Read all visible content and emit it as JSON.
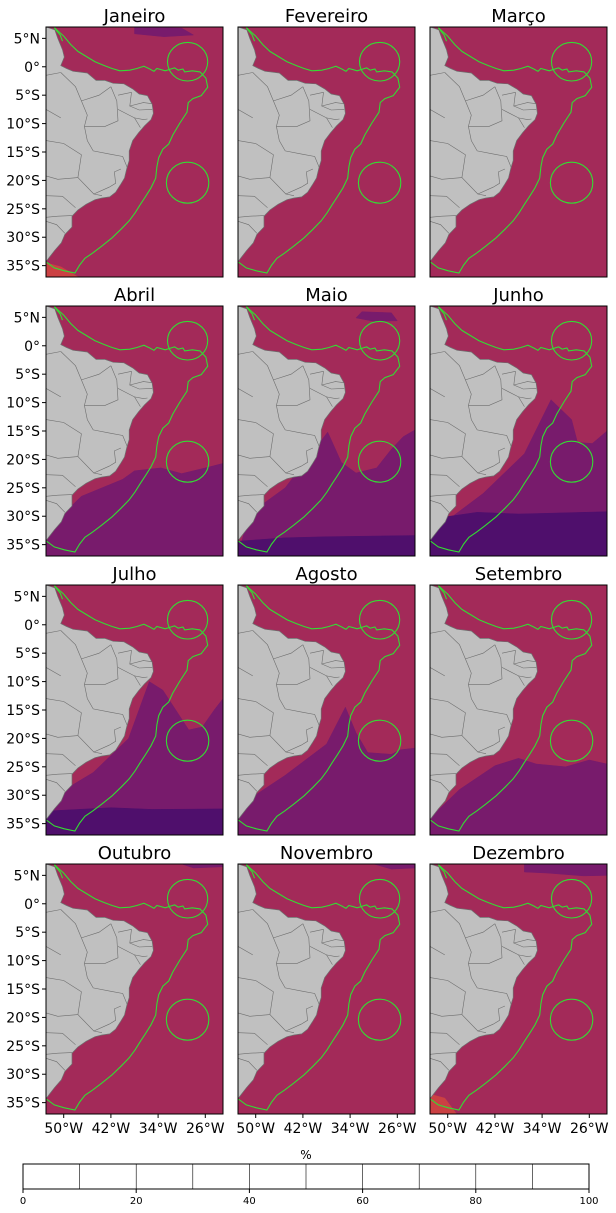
{
  "figure": {
    "units_label": "%"
  },
  "chart_data": {
    "type": "heatmap",
    "panels": [
      {
        "title": "Janeiro"
      },
      {
        "title": "Fevereiro"
      },
      {
        "title": "Março"
      },
      {
        "title": "Abril"
      },
      {
        "title": "Maio"
      },
      {
        "title": "Junho"
      },
      {
        "title": "Julho"
      },
      {
        "title": "Agosto"
      },
      {
        "title": "Setembro"
      },
      {
        "title": "Outubro"
      },
      {
        "title": "Novembro"
      },
      {
        "title": "Dezembro"
      }
    ],
    "lat_ticks": [
      "5°N",
      "0°",
      "5°S",
      "10°S",
      "15°S",
      "20°S",
      "25°S",
      "30°S",
      "35°S"
    ],
    "lat_values": [
      5,
      0,
      -5,
      -10,
      -15,
      -20,
      -25,
      -30,
      -35
    ],
    "lon_ticks": [
      "50°W",
      "42°W",
      "34°W",
      "26°W"
    ],
    "lon_values": [
      -50,
      -42,
      -34,
      -26
    ],
    "xlim": [
      -53,
      -23
    ],
    "ylim": [
      -37,
      7
    ],
    "colorbar": {
      "label": "%",
      "ticks": [
        "0",
        "20",
        "40",
        "60",
        "80",
        "100"
      ],
      "range": [
        0,
        100
      ],
      "bins": [
        {
          "from": 0,
          "to": 10,
          "color": "#060419"
        },
        {
          "from": 10,
          "to": 20,
          "color": "#260c50"
        },
        {
          "from": 20,
          "to": 30,
          "color": "#4f0f6c"
        },
        {
          "from": 30,
          "to": 40,
          "color": "#781b6c"
        },
        {
          "from": 40,
          "to": 50,
          "color": "#a32a59"
        },
        {
          "from": 50,
          "to": 60,
          "color": "#cb4143"
        },
        {
          "from": 60,
          "to": 70,
          "color": "#e8622c"
        },
        {
          "from": 70,
          "to": 80,
          "color": "#f88b0c"
        },
        {
          "from": 80,
          "to": 90,
          "color": "#fabe28"
        },
        {
          "from": 90,
          "to": 100,
          "color": "#f2f07a"
        }
      ]
    },
    "dominant_class_percent": [
      40,
      50
    ],
    "colors": {
      "land": "#c0c0c0",
      "border": "#6e6e6e",
      "eez_outline": "#33dd33"
    }
  }
}
